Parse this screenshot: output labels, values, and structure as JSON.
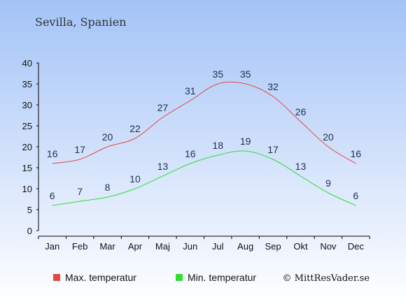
{
  "chart_data": {
    "type": "line",
    "title": "Sevilla, Spanien",
    "categories": [
      "Jan",
      "Feb",
      "Mar",
      "Apr",
      "Maj",
      "Jun",
      "Jul",
      "Aug",
      "Sep",
      "Okt",
      "Nov",
      "Dec"
    ],
    "series": [
      {
        "name": "Max. temperatur",
        "color": "#e64545",
        "values": [
          16,
          17,
          20,
          22,
          27,
          31,
          35,
          35,
          32,
          26,
          20,
          16
        ]
      },
      {
        "name": "Min. temperatur",
        "color": "#33dd33",
        "values": [
          6,
          7,
          8,
          10,
          13,
          16,
          18,
          19,
          17,
          13,
          9,
          6
        ]
      }
    ],
    "ylim": [
      0,
      40
    ],
    "yticks": [
      0,
      5,
      10,
      15,
      20,
      25,
      30,
      35,
      40
    ],
    "grid": false,
    "legend_position": "bottom-left",
    "credit": "© MittResVader.se",
    "colors": {
      "background_top": "#a3c3f7",
      "background_bottom": "#ffffff",
      "axis": "#000000",
      "label": "#1f2f4f"
    }
  }
}
